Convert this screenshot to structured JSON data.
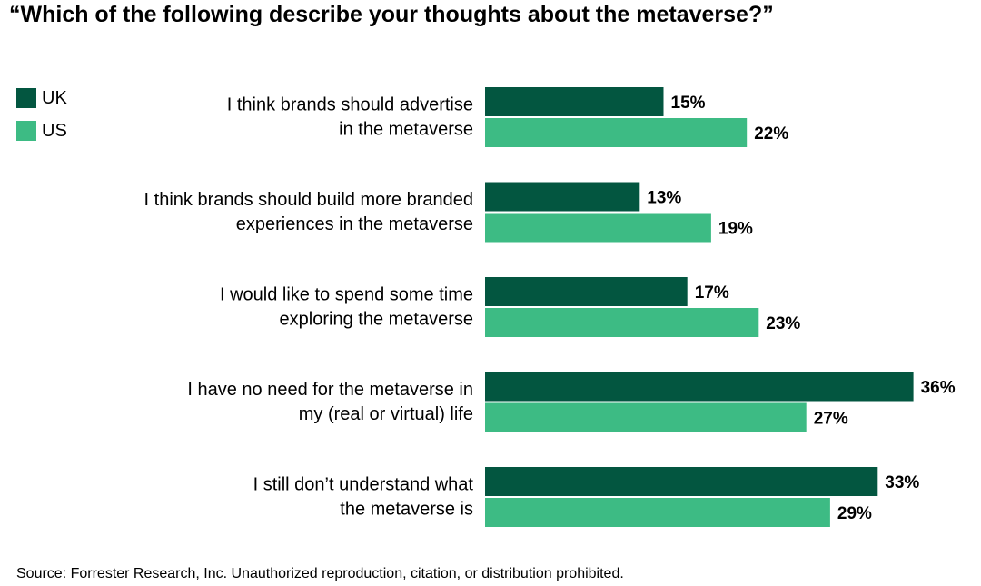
{
  "chart_data": {
    "type": "bar",
    "orientation": "horizontal",
    "title": "“Which of the following describe your thoughts about the metaverse?”",
    "categories": [
      [
        "I think brands should advertise",
        "in the metaverse"
      ],
      [
        "I think brands should build more branded",
        "experiences in the metaverse"
      ],
      [
        "I would like to spend some time",
        "exploring the metaverse"
      ],
      [
        "I have no need for the metaverse in",
        "my (real or virtual) life"
      ],
      [
        "I still don’t understand what",
        "the metaverse is"
      ]
    ],
    "series": [
      {
        "name": "UK",
        "color": "#035640",
        "values": [
          15,
          13,
          17,
          36,
          33
        ],
        "labels": [
          "15%",
          "13%",
          "17%",
          "36%",
          "33%"
        ]
      },
      {
        "name": "US",
        "color": "#3dbb84",
        "values": [
          22,
          19,
          23,
          27,
          29
        ],
        "labels": [
          "22%",
          "19%",
          "23%",
          "27%",
          "29%"
        ]
      }
    ],
    "xlim": [
      0,
      36
    ],
    "grid": false,
    "legend_position": "top-left",
    "source": "Source: Forrester Research, Inc. Unauthorized reproduction, citation, or distribution prohibited."
  }
}
